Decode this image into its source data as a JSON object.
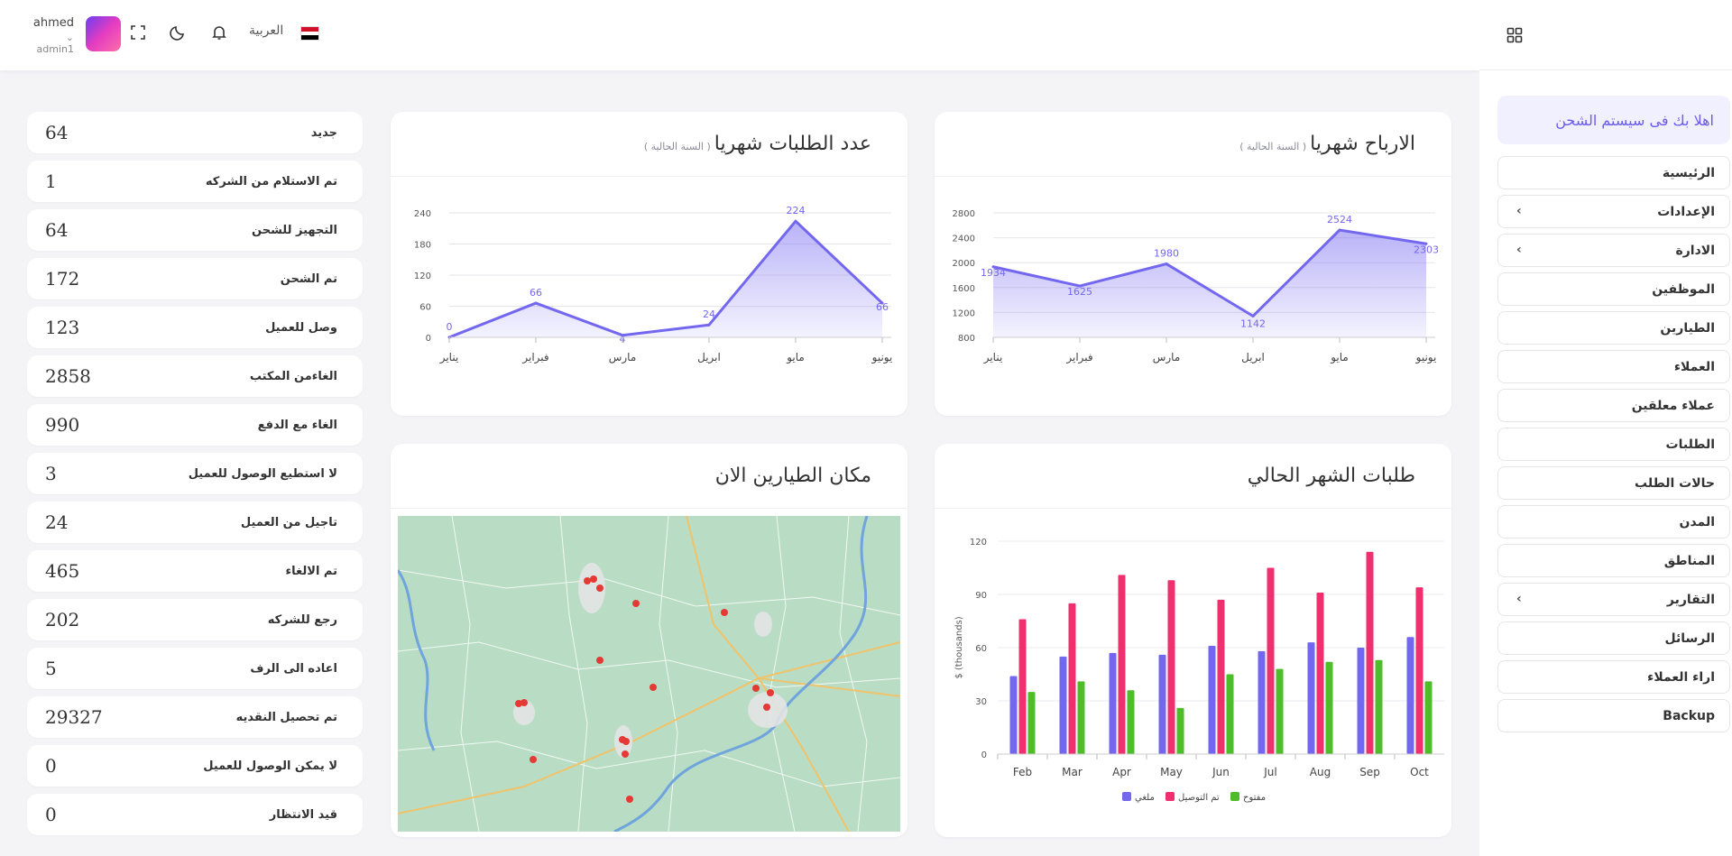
{
  "topbar": {
    "user_name": "ahmed",
    "user_role": "admin1",
    "language": "العربية"
  },
  "sidebar": {
    "welcome": "اهلا بك فى سيستم الشحن",
    "items": [
      {
        "label": "الرئيسية",
        "has_submenu": false
      },
      {
        "label": "الإعدادات",
        "has_submenu": true
      },
      {
        "label": "الادارة",
        "has_submenu": true
      },
      {
        "label": "الموظفين",
        "has_submenu": false
      },
      {
        "label": "الطيارين",
        "has_submenu": false
      },
      {
        "label": "العملاء",
        "has_submenu": false
      },
      {
        "label": "عملاء معلقين",
        "has_submenu": false
      },
      {
        "label": "الطلبات",
        "has_submenu": false
      },
      {
        "label": "حالات الطلب",
        "has_submenu": false
      },
      {
        "label": "المدن",
        "has_submenu": false
      },
      {
        "label": "المناطق",
        "has_submenu": false
      },
      {
        "label": "التقارير",
        "has_submenu": true
      },
      {
        "label": "الرسائل",
        "has_submenu": false
      },
      {
        "label": "اراء العملاء",
        "has_submenu": false
      },
      {
        "label": "Backup",
        "has_submenu": false
      }
    ]
  },
  "status_list": [
    {
      "label": "جديد",
      "value": "64"
    },
    {
      "label": "تم الاستلام من الشركه",
      "value": "1"
    },
    {
      "label": "التجهيز للشحن",
      "value": "64"
    },
    {
      "label": "تم الشحن",
      "value": "172"
    },
    {
      "label": "وصل للعميل",
      "value": "123"
    },
    {
      "label": "الغاءمن المكتب",
      "value": "2858"
    },
    {
      "label": "الغاء مع الدفع",
      "value": "990"
    },
    {
      "label": "لا استطيع الوصول للعميل",
      "value": "3"
    },
    {
      "label": "تاجيل من العميل",
      "value": "24"
    },
    {
      "label": "تم الالغاء",
      "value": "465"
    },
    {
      "label": "رجع للشركه",
      "value": "202"
    },
    {
      "label": "اعاده الى الرف",
      "value": "5"
    },
    {
      "label": "تم تحصيل النقديه",
      "value": "29327"
    },
    {
      "label": "لا يمكن الوصول للعميل",
      "value": "0"
    },
    {
      "label": "قيد الانتظار",
      "value": "0"
    }
  ],
  "cards": {
    "profits": {
      "title": "الارباح شهريا",
      "subtitle": "( السنة الحالية )"
    },
    "orders": {
      "title": "عدد الطلبات شهريا",
      "subtitle": "( السنة الحالية )"
    },
    "current_month": {
      "title": "طلبات الشهر الحالي"
    },
    "map": {
      "title": "مكان الطيارين الان"
    }
  },
  "colors": {
    "accent": "#7367f0",
    "pink": "#f0306e",
    "green": "#4dbd2a"
  },
  "chart_data": [
    {
      "type": "area",
      "categories": [
        "يناير",
        "فبراير",
        "مارس",
        "ابريل",
        "مايو",
        "يونيو"
      ],
      "values": [
        1934,
        1625,
        1980,
        1142,
        2524,
        2303
      ],
      "yticks": [
        800,
        1200,
        1600,
        2000,
        2400,
        2800
      ],
      "ylim": [
        800,
        2800
      ]
    },
    {
      "type": "area",
      "categories": [
        "يناير",
        "فبراير",
        "مارس",
        "ابريل",
        "مايو",
        "يونيو"
      ],
      "values": [
        0,
        66,
        4,
        24,
        224,
        66
      ],
      "yticks": [
        0,
        60,
        120,
        180,
        240
      ],
      "ylim": [
        0,
        240
      ]
    },
    {
      "type": "bar",
      "categories": [
        "Feb",
        "Mar",
        "Apr",
        "May",
        "Jun",
        "Jul",
        "Aug",
        "Sep",
        "Oct"
      ],
      "ylabel": "$ (thousands)",
      "ylim": [
        0,
        120
      ],
      "yticks": [
        0,
        30,
        60,
        90,
        120
      ],
      "series": [
        {
          "name": "ملغي",
          "color": "#7367f0",
          "values": [
            44,
            55,
            57,
            56,
            61,
            58,
            63,
            60,
            66
          ]
        },
        {
          "name": "تم التوصيل",
          "color": "#f0306e",
          "values": [
            76,
            85,
            101,
            98,
            87,
            105,
            91,
            114,
            94
          ]
        },
        {
          "name": "مفتوح",
          "color": "#4dbd2a",
          "values": [
            35,
            41,
            36,
            26,
            45,
            48,
            52,
            53,
            41
          ]
        }
      ]
    }
  ]
}
